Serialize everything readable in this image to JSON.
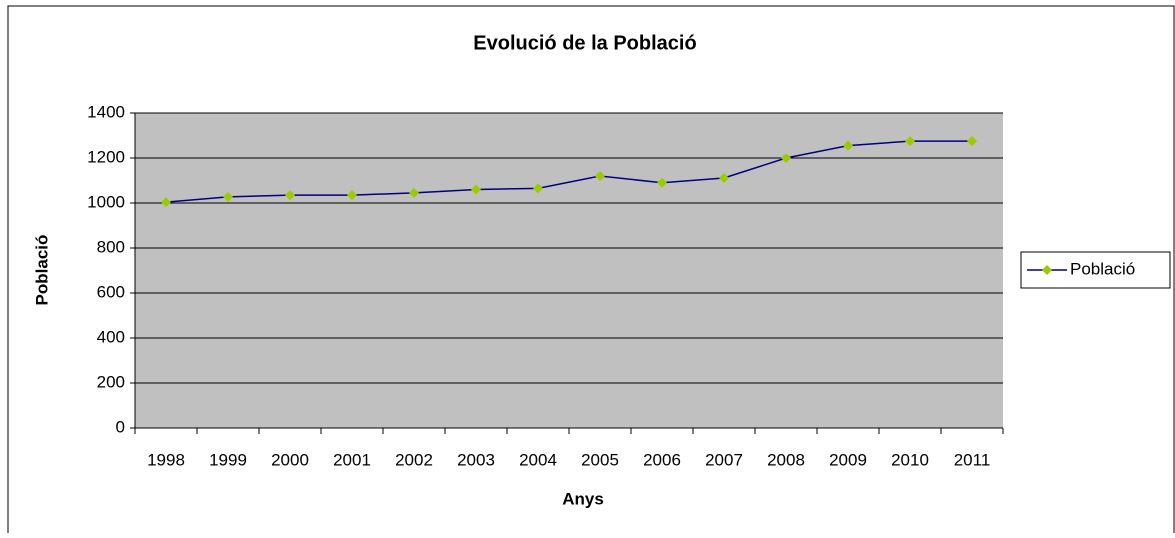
{
  "chart_data": {
    "type": "line",
    "title": "Evolució de la Població",
    "x_label": "Anys",
    "y_label": "Població",
    "categories": [
      "1998",
      "1999",
      "2000",
      "2001",
      "2002",
      "2003",
      "2004",
      "2005",
      "2006",
      "2007",
      "2008",
      "2009",
      "2010",
      "2011"
    ],
    "series": [
      {
        "name": "Població",
        "color": "#000080",
        "marker_color": "#99cc00",
        "values": [
          1004,
          1027,
          1035,
          1035,
          1045,
          1060,
          1065,
          1120,
          1090,
          1111,
          1200,
          1255,
          1275,
          1275
        ]
      }
    ],
    "ylim": [
      0,
      1400
    ],
    "yticks": [
      0,
      200,
      400,
      600,
      800,
      1000,
      1200,
      1400
    ],
    "grid": true,
    "legend": "right"
  }
}
